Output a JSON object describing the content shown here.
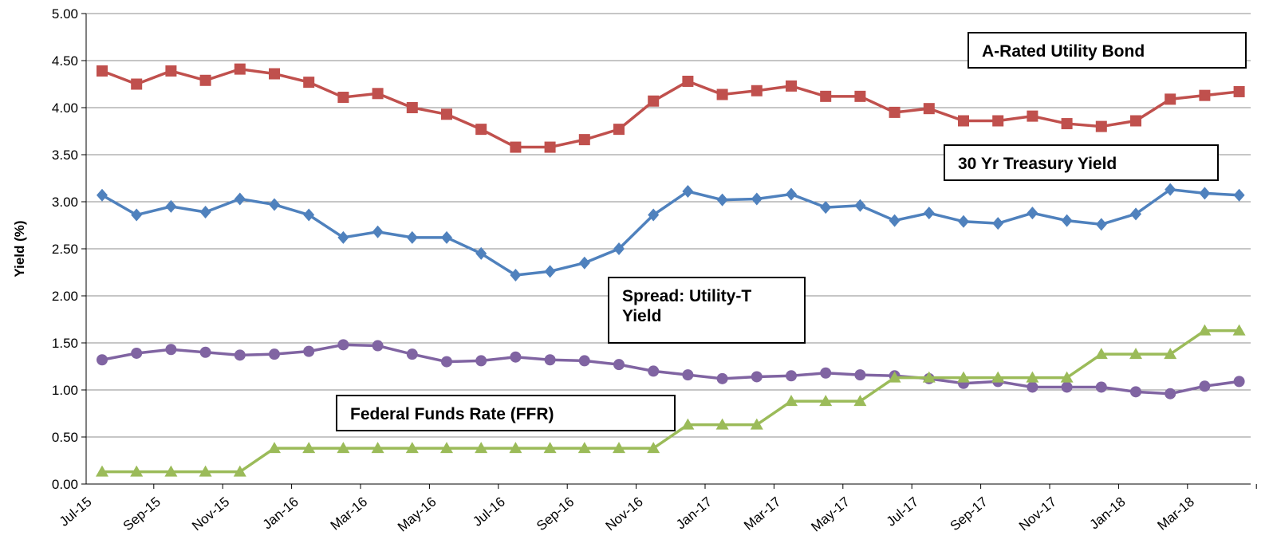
{
  "chart_data": {
    "type": "line",
    "y_label": "Yield (%)",
    "categories": [
      "Jul-15",
      null,
      "Sep-15",
      null,
      "Nov-15",
      null,
      "Jan-16",
      null,
      "Mar-16",
      null,
      "May-16",
      null,
      "Jul-16",
      null,
      "Sep-16",
      null,
      "Nov-16",
      null,
      "Jan-17",
      null,
      "Mar-17",
      null,
      "May-17",
      null,
      "Jul-17",
      null,
      "Sep-17",
      null,
      "Nov-17",
      null,
      "Jan-18",
      null,
      "Mar-18",
      null
    ],
    "series": [
      {
        "name": "A-Rated Utility Bond",
        "color": "#c0504d",
        "marker": "square",
        "values": [
          4.39,
          4.25,
          4.39,
          4.29,
          4.41,
          4.36,
          4.27,
          4.11,
          4.15,
          4.0,
          3.93,
          3.77,
          3.58,
          3.58,
          3.66,
          3.77,
          4.07,
          4.28,
          4.14,
          4.18,
          4.23,
          4.12,
          4.12,
          3.95,
          3.99,
          3.86,
          3.86,
          3.91,
          3.83,
          3.8,
          3.86,
          4.09,
          4.13,
          4.17
        ]
      },
      {
        "name": "30 Yr Treasury Yield",
        "color": "#4f81bd",
        "marker": "diamond",
        "values": [
          3.07,
          2.86,
          2.95,
          2.89,
          3.03,
          2.97,
          2.86,
          2.62,
          2.68,
          2.62,
          2.62,
          2.45,
          2.22,
          2.26,
          2.35,
          2.5,
          2.86,
          3.11,
          3.02,
          3.03,
          3.08,
          2.94,
          2.96,
          2.8,
          2.88,
          2.79,
          2.77,
          2.88,
          2.8,
          2.76,
          2.87,
          3.13,
          3.09,
          3.07
        ]
      },
      {
        "name": "Spread: Utility-T Yield",
        "color": "#8064a2",
        "marker": "circle",
        "values": [
          1.32,
          1.39,
          1.43,
          1.4,
          1.37,
          1.38,
          1.41,
          1.48,
          1.47,
          1.38,
          1.3,
          1.31,
          1.35,
          1.32,
          1.31,
          1.27,
          1.2,
          1.16,
          1.12,
          1.14,
          1.15,
          1.18,
          1.16,
          1.15,
          1.12,
          1.07,
          1.09,
          1.03,
          1.03,
          1.03,
          0.98,
          0.96,
          1.04,
          1.09
        ]
      },
      {
        "name": "Federal Funds Rate (FFR)",
        "color": "#9bbb59",
        "marker": "triangle",
        "values": [
          0.13,
          0.13,
          0.13,
          0.13,
          0.13,
          0.38,
          0.38,
          0.38,
          0.38,
          0.38,
          0.38,
          0.38,
          0.38,
          0.38,
          0.38,
          0.38,
          0.38,
          0.63,
          0.63,
          0.63,
          0.88,
          0.88,
          0.88,
          1.13,
          1.13,
          1.13,
          1.13,
          1.13,
          1.13,
          1.38,
          1.38,
          1.38,
          1.63,
          1.63
        ]
      }
    ],
    "ylim": [
      0,
      5
    ],
    "yticks": [
      {
        "value": 0,
        "label": "0.00"
      },
      {
        "value": 0.5,
        "label": "0.50"
      },
      {
        "value": 1,
        "label": "1.00"
      },
      {
        "value": 1.5,
        "label": "1.50"
      },
      {
        "value": 2,
        "label": "2.00"
      },
      {
        "value": 2.5,
        "label": "2.50"
      },
      {
        "value": 3,
        "label": "3.00"
      },
      {
        "value": 3.5,
        "label": "3.50"
      },
      {
        "value": 4,
        "label": "4.00"
      },
      {
        "value": 4.5,
        "label": "4.50"
      },
      {
        "value": 5,
        "label": "5.00"
      }
    ],
    "grid": true
  }
}
